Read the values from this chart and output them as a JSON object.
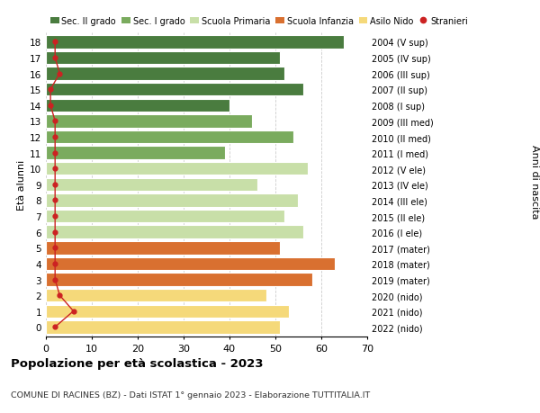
{
  "ages": [
    18,
    17,
    16,
    15,
    14,
    13,
    12,
    11,
    10,
    9,
    8,
    7,
    6,
    5,
    4,
    3,
    2,
    1,
    0
  ],
  "bar_values": [
    65,
    51,
    52,
    56,
    40,
    45,
    54,
    39,
    57,
    46,
    55,
    52,
    56,
    51,
    63,
    58,
    48,
    53,
    51
  ],
  "stranieri_values": [
    2,
    2,
    3,
    1,
    1,
    2,
    2,
    2,
    2,
    2,
    2,
    2,
    2,
    2,
    2,
    2,
    3,
    6,
    2
  ],
  "right_labels": [
    "2004 (V sup)",
    "2005 (IV sup)",
    "2006 (III sup)",
    "2007 (II sup)",
    "2008 (I sup)",
    "2009 (III med)",
    "2010 (II med)",
    "2011 (I med)",
    "2012 (V ele)",
    "2013 (IV ele)",
    "2014 (III ele)",
    "2015 (II ele)",
    "2016 (I ele)",
    "2017 (mater)",
    "2018 (mater)",
    "2019 (mater)",
    "2020 (nido)",
    "2021 (nido)",
    "2022 (nido)"
  ],
  "bar_colors": [
    "#4a7c3f",
    "#4a7c3f",
    "#4a7c3f",
    "#4a7c3f",
    "#4a7c3f",
    "#7aab5e",
    "#7aab5e",
    "#7aab5e",
    "#c8dfa8",
    "#c8dfa8",
    "#c8dfa8",
    "#c8dfa8",
    "#c8dfa8",
    "#d97030",
    "#d97030",
    "#d97030",
    "#f5d97a",
    "#f5d97a",
    "#f5d97a"
  ],
  "legend_labels": [
    "Sec. II grado",
    "Sec. I grado",
    "Scuola Primaria",
    "Scuola Infanzia",
    "Asilo Nido",
    "Stranieri"
  ],
  "legend_colors": [
    "#4a7c3f",
    "#7aab5e",
    "#c8dfa8",
    "#d97030",
    "#f5d97a",
    "#cc2222"
  ],
  "title": "Popolazione per età scolastica - 2023",
  "subtitle": "COMUNE DI RACINES (BZ) - Dati ISTAT 1° gennaio 2023 - Elaborazione TUTTITALIA.IT",
  "ylabel_left": "Età alunni",
  "ylabel_right": "Anni di nascita",
  "xlim": [
    0,
    70
  ],
  "xticks": [
    0,
    10,
    20,
    30,
    40,
    50,
    60,
    70
  ],
  "stranieri_color": "#cc2222",
  "bar_height": 0.82
}
